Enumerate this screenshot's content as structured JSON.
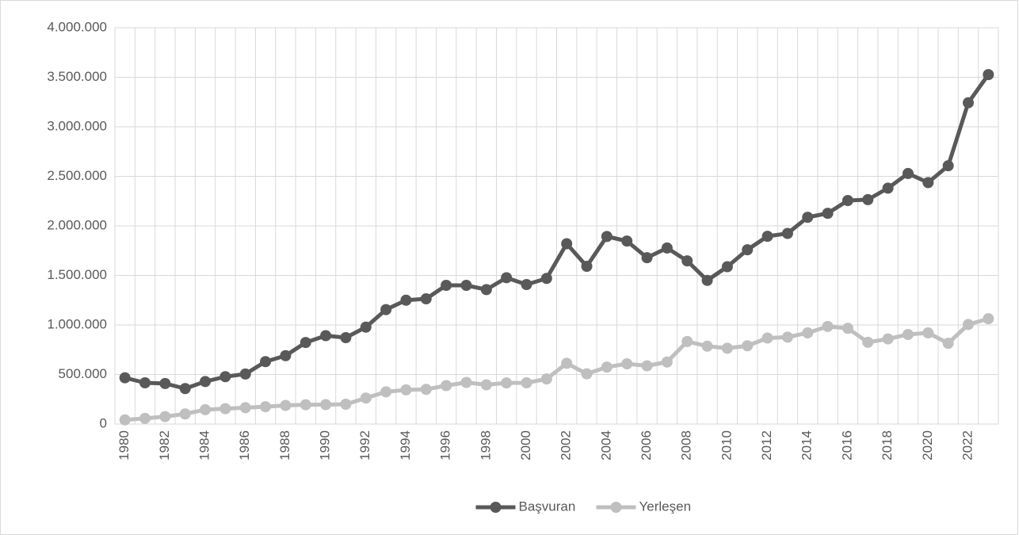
{
  "chart_data": {
    "type": "line",
    "categories": [
      "1980",
      null,
      "1982",
      null,
      "1984",
      null,
      "1986",
      null,
      "1988",
      null,
      "1990",
      null,
      "1992",
      null,
      "1994",
      null,
      "1996",
      null,
      "1998",
      null,
      "2000",
      null,
      "2002",
      null,
      "2004",
      null,
      "2006",
      null,
      "2008",
      null,
      "2010",
      null,
      "2012",
      null,
      "2014",
      null,
      "2016",
      null,
      "2018",
      null,
      "2020",
      null,
      "2022",
      null
    ],
    "series": [
      {
        "name": "Başvuran",
        "color": "#595959",
        "values": [
          466963,
          416000,
          409000,
          358000,
          429000,
          478000,
          505000,
          630000,
          690000,
          823000,
          892000,
          872000,
          978000,
          1155000,
          1250000,
          1264000,
          1400000,
          1400000,
          1357000,
          1477000,
          1408000,
          1470000,
          1820000,
          1592000,
          1893000,
          1847000,
          1679000,
          1777000,
          1647000,
          1450000,
          1588000,
          1759000,
          1895000,
          1924000,
          2087000,
          2127000,
          2256000,
          2265000,
          2381000,
          2529000,
          2437000,
          2607000,
          3243000,
          3527000
        ]
      },
      {
        "name": "Yerleşen",
        "color": "#bfbfbf",
        "values": [
          42000,
          57000,
          75000,
          102000,
          145000,
          155000,
          165000,
          175000,
          188000,
          195000,
          196000,
          200000,
          262000,
          325000,
          345000,
          350000,
          388000,
          420000,
          396000,
          415000,
          416000,
          455000,
          613000,
          507000,
          575000,
          608000,
          588000,
          626000,
          833000,
          786000,
          765000,
          790000,
          868000,
          877000,
          920000,
          985000,
          966000,
          825000,
          859000,
          904000,
          920000,
          815000,
          1005000,
          1063000
        ]
      }
    ],
    "ylim": [
      0,
      4000000
    ],
    "yticks": [
      0,
      {
        "value": 500000,
        "label": "500.000"
      },
      {
        "value": 1000000,
        "label": "1.000.000"
      },
      {
        "value": 1500000,
        "label": "1.500.000"
      },
      {
        "value": 2000000,
        "label": "2.000.000"
      },
      {
        "value": 2500000,
        "label": "2.500.000"
      },
      {
        "value": 3000000,
        "label": "3.000.000"
      },
      {
        "value": 3500000,
        "label": "3.500.000"
      },
      {
        "value": 4000000,
        "label": "4.000.000"
      }
    ],
    "grid": true,
    "legend": "bottom"
  }
}
